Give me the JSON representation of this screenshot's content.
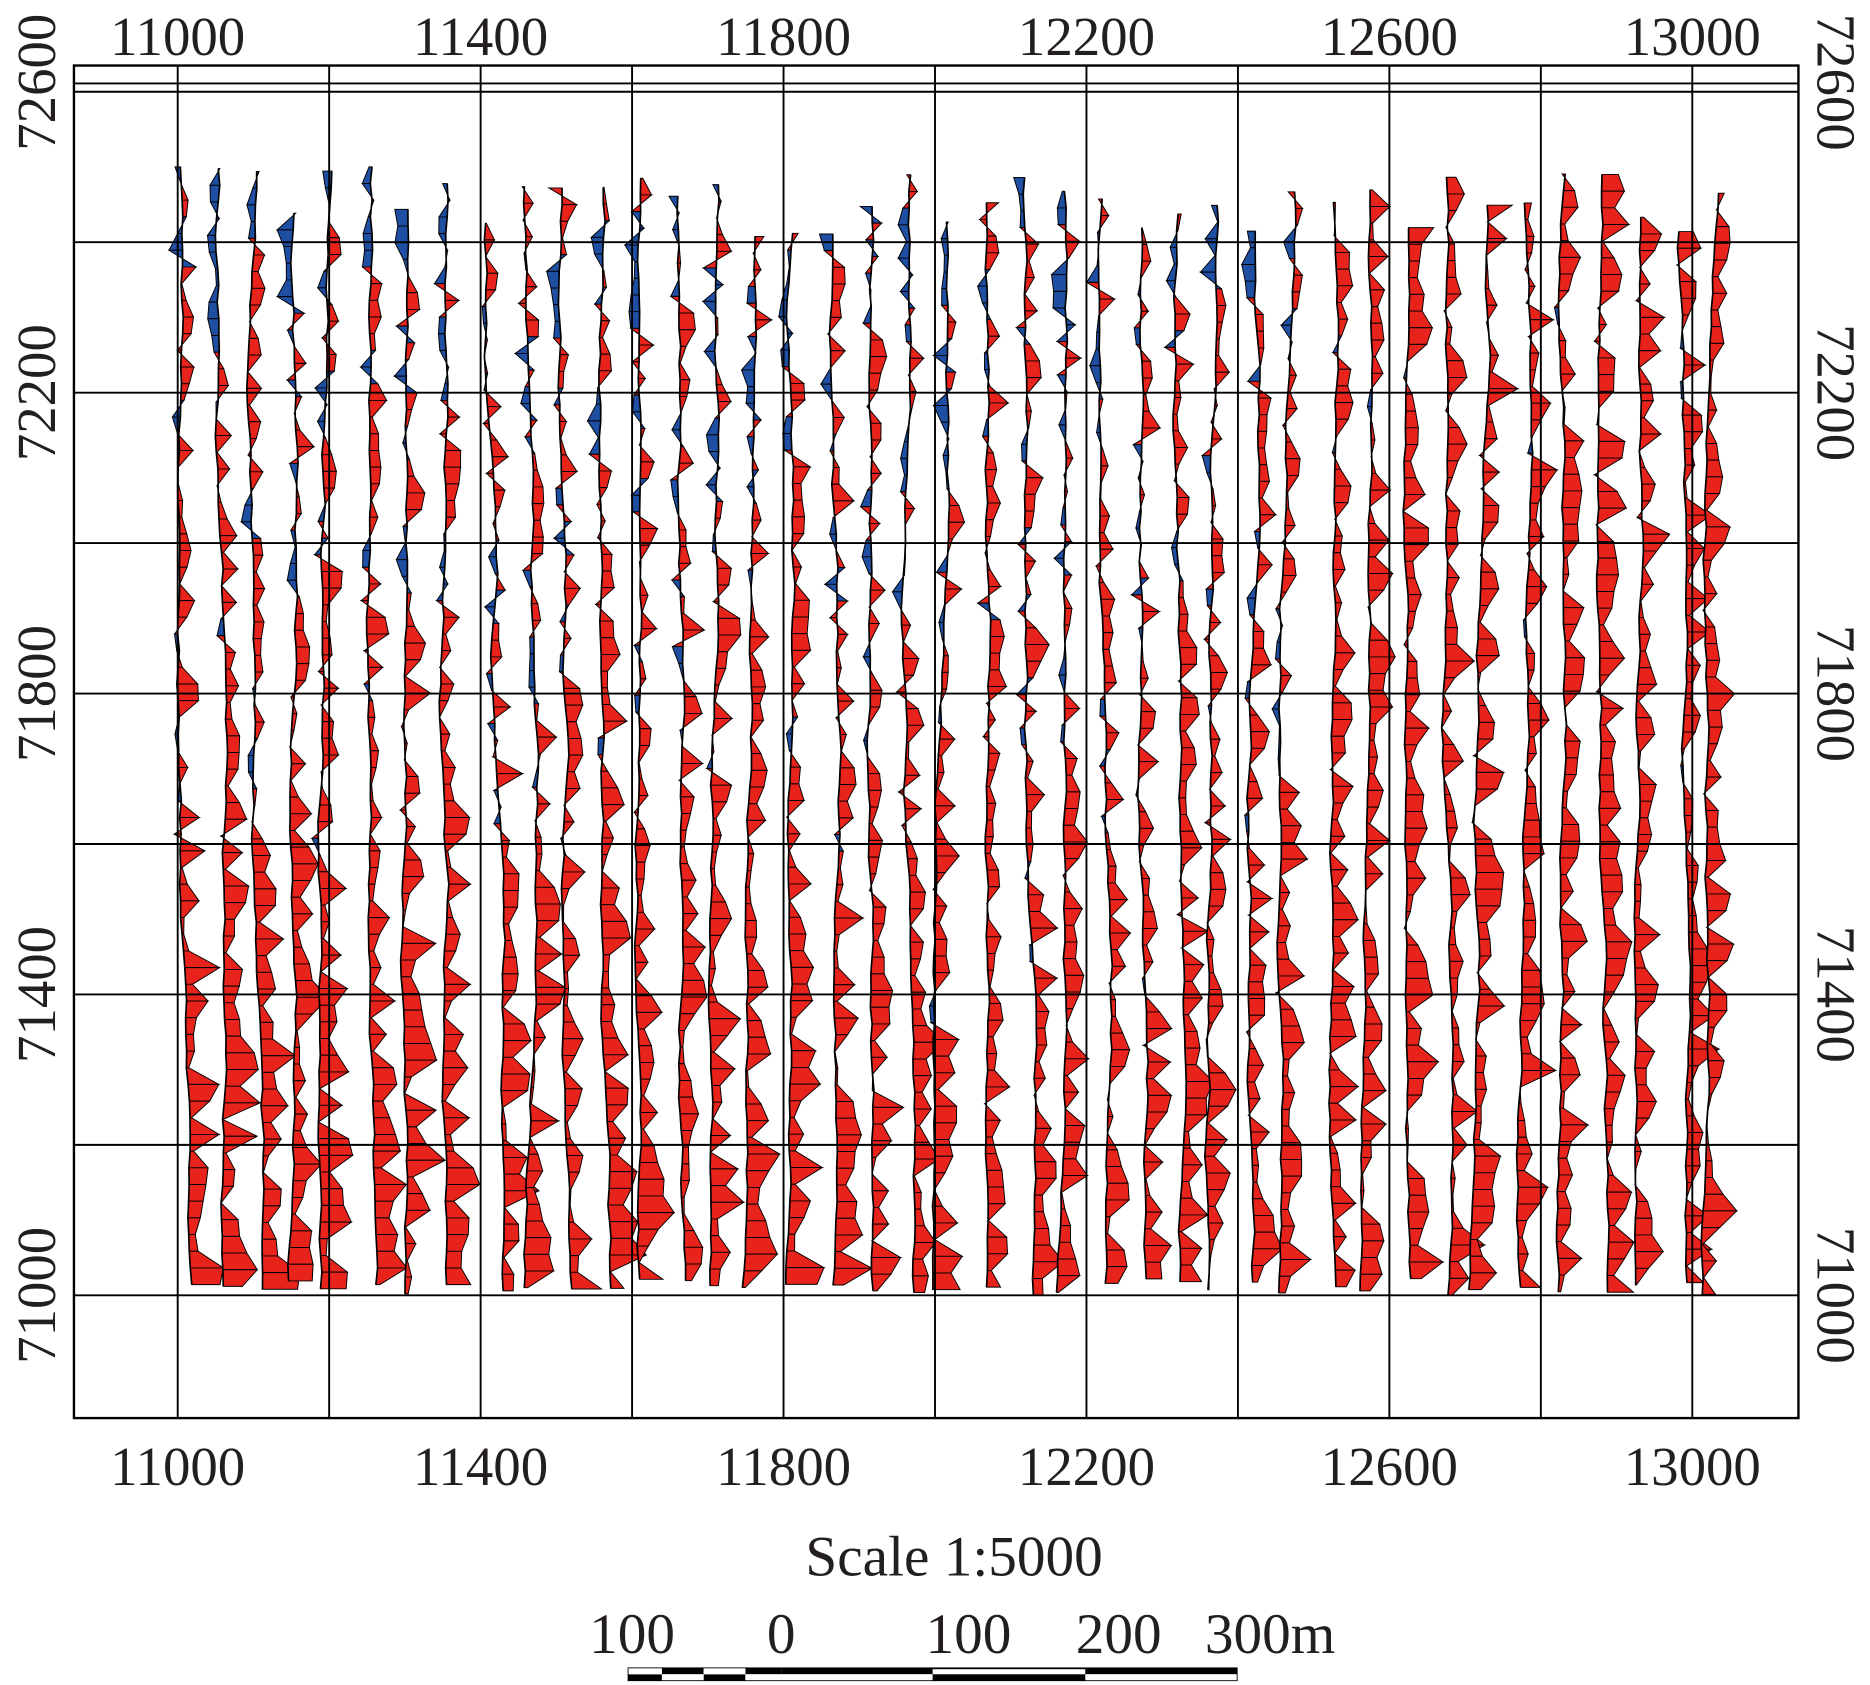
{
  "map": {
    "x_ticks": [
      "11000",
      "11400",
      "11800",
      "12200",
      "12600",
      "13000"
    ],
    "x_tick_values": [
      11000,
      11400,
      11800,
      12200,
      12600,
      13000
    ],
    "y_ticks": [
      "71000",
      "71400",
      "71800",
      "72200",
      "72600"
    ],
    "y_tick_values": [
      71000,
      71400,
      71800,
      72200,
      72600
    ],
    "x_grid_range": [
      11000,
      13000
    ],
    "y_grid_range": [
      71000,
      72600
    ],
    "grid_step": 200,
    "trace_count": 41,
    "colors": {
      "positive": "#e8231c",
      "negative": "#1f4fa3",
      "line": "#000000"
    }
  },
  "scale": {
    "title": "Scale 1:5000",
    "labels": [
      "100",
      "0",
      "100",
      "200",
      "300m"
    ]
  }
}
